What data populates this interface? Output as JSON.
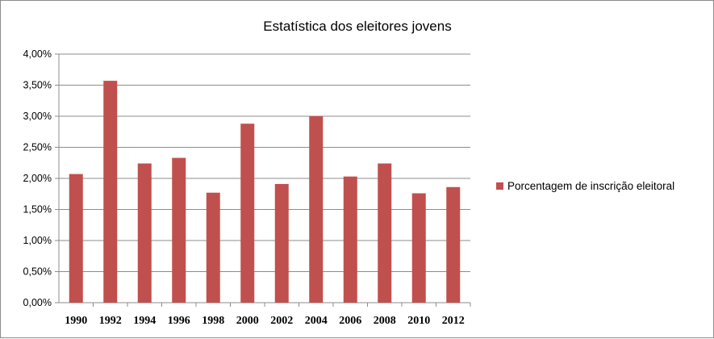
{
  "chart_data": {
    "type": "bar",
    "title": "Estatística dos eleitores jovens",
    "categories": [
      "1990",
      "1992",
      "1994",
      "1996",
      "1998",
      "2000",
      "2002",
      "2004",
      "2006",
      "2008",
      "2010",
      "2012"
    ],
    "series": [
      {
        "name": "Porcentagem de inscrição eleitoral",
        "color": "#c0504d",
        "values": [
          2.07,
          3.57,
          2.24,
          2.33,
          1.77,
          2.88,
          1.91,
          3.0,
          2.03,
          2.24,
          1.76,
          1.86
        ]
      }
    ],
    "yticks": [
      "0,00%",
      "0,50%",
      "1,00%",
      "1,50%",
      "2,00%",
      "2,50%",
      "3,00%",
      "3,50%",
      "4,00%"
    ],
    "ylim": [
      0,
      4
    ],
    "ystep": 0.5,
    "grid": true,
    "legend_position": "right",
    "xlabel": "",
    "ylabel": ""
  }
}
